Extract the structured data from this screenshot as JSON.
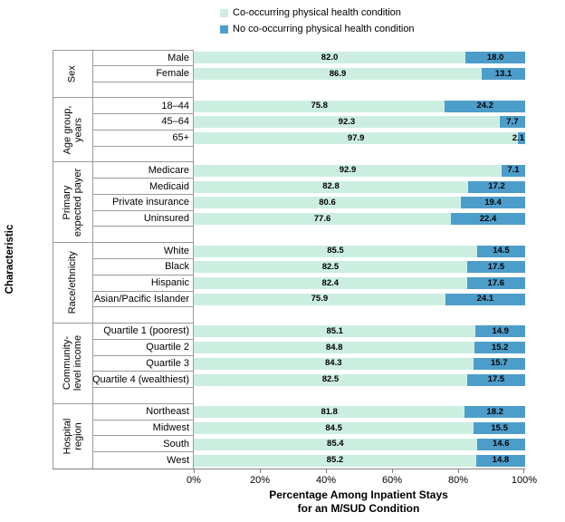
{
  "chart_data": {
    "type": "bar",
    "orientation": "horizontal",
    "stacked": true,
    "title": "",
    "xlabel": "Percentage Among Inpatient Stays for an M/SUD Condition",
    "xlabel_lines": [
      "Percentage Among Inpatient Stays",
      "for an M/SUD Condition"
    ],
    "ylabel": "Characteristic",
    "xlim": [
      0,
      100
    ],
    "x_tick_labels": [
      "0%",
      "20%",
      "40%",
      "60%",
      "80%",
      "100%"
    ],
    "grid": false,
    "legend_position": "top",
    "value_label_format": "one-decimal",
    "series": [
      {
        "name": "Co-occurring physical health condition",
        "color": "#cceee1"
      },
      {
        "name": "No co-occurring physical health condition",
        "color": "#4d9dca"
      }
    ],
    "groups": [
      {
        "label_lines": [
          "Sex"
        ],
        "rows": [
          {
            "category": "Male",
            "values": [
              82.0,
              18.0
            ]
          },
          {
            "category": "Female",
            "values": [
              86.9,
              13.1
            ]
          }
        ]
      },
      {
        "label_lines": [
          "Age group,",
          "years"
        ],
        "rows": [
          {
            "category": "18–44",
            "values": [
              75.8,
              24.2
            ]
          },
          {
            "category": "45–64",
            "values": [
              92.3,
              7.7
            ]
          },
          {
            "category": "65+",
            "values": [
              97.9,
              2.1
            ]
          }
        ]
      },
      {
        "label_lines": [
          "Primary",
          "expected payer"
        ],
        "rows": [
          {
            "category": "Medicare",
            "values": [
              92.9,
              7.1
            ]
          },
          {
            "category": "Medicaid",
            "values": [
              82.8,
              17.2
            ]
          },
          {
            "category": "Private insurance",
            "values": [
              80.6,
              19.4
            ]
          },
          {
            "category": "Uninsured",
            "values": [
              77.6,
              22.4
            ]
          }
        ]
      },
      {
        "label_lines": [
          "Race/ethnicity"
        ],
        "rows": [
          {
            "category": "White",
            "values": [
              85.5,
              14.5
            ]
          },
          {
            "category": "Black",
            "values": [
              82.5,
              17.5
            ]
          },
          {
            "category": "Hispanic",
            "values": [
              82.4,
              17.6
            ]
          },
          {
            "category": "Asian/Pacific Islander",
            "values": [
              75.9,
              24.1
            ]
          }
        ]
      },
      {
        "label_lines": [
          "Community-",
          "level income"
        ],
        "rows": [
          {
            "category": "Quartile 1 (poorest)",
            "values": [
              85.1,
              14.9
            ]
          },
          {
            "category": "Quartile 2",
            "values": [
              84.8,
              15.2
            ]
          },
          {
            "category": "Quartile 3",
            "values": [
              84.3,
              15.7
            ]
          },
          {
            "category": "Quartile 4 (wealthiest)",
            "values": [
              82.5,
              17.5
            ]
          }
        ]
      },
      {
        "label_lines": [
          "Hospital",
          "region"
        ],
        "rows": [
          {
            "category": "Northeast",
            "values": [
              81.8,
              18.2
            ]
          },
          {
            "category": "Midwest",
            "values": [
              84.5,
              15.5
            ]
          },
          {
            "category": "South",
            "values": [
              85.4,
              14.6
            ]
          },
          {
            "category": "West",
            "values": [
              85.2,
              14.8
            ]
          }
        ]
      }
    ]
  }
}
